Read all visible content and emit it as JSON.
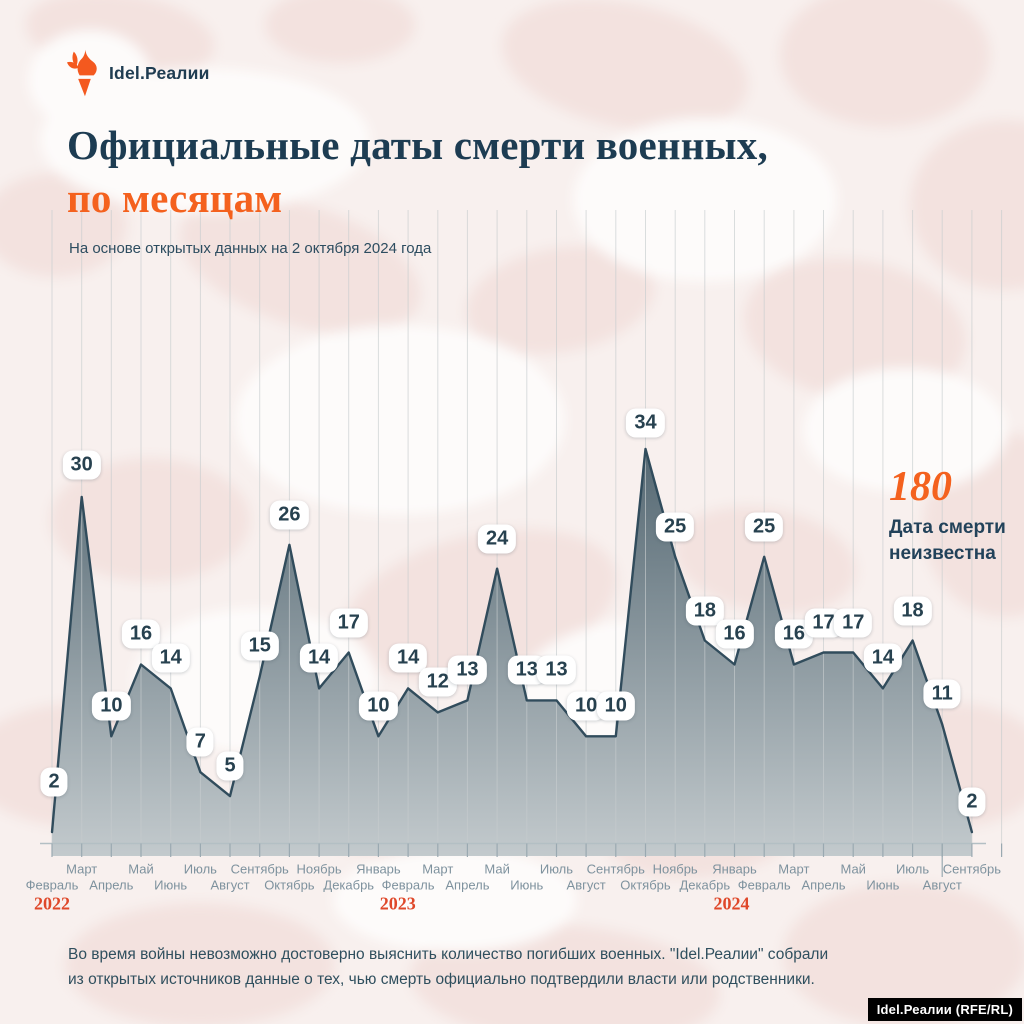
{
  "header": {
    "logo_text": "Idel.Реалии",
    "title_line1": "Официальные даты смерти военных,",
    "title_line2": "по месяцам",
    "subtitle": "На основе открытых данных на 2 октября 2024 года"
  },
  "annotation": {
    "value": "180",
    "label": "Дата смерти неизвестна"
  },
  "footer": {
    "note_line1": "Во время войны невозможно достоверно выяснить количество погибших военных. \"Idel.Реалии\" собрали",
    "note_line2": "из открытых источников данные о тех, чью смерть официально подтвердили власти или родственники.",
    "badge": "Idel.Реалии (RFE/RL)"
  },
  "chart_data": {
    "type": "area",
    "title": "Официальные даты смерти военных, по месяцам",
    "subtitle": "На основе открытых данных на 2 октября 2024 года",
    "categories": [
      "Февраль",
      "Март",
      "Апрель",
      "Май",
      "Июнь",
      "Июль",
      "Август",
      "Сентябрь",
      "Октябрь",
      "Ноябрь",
      "Декабрь",
      "Январь",
      "Февраль",
      "Март",
      "Апрель",
      "Май",
      "Июнь",
      "Июль",
      "Август",
      "Сентябрь",
      "Октябрь",
      "Ноябрь",
      "Декабрь",
      "Январь",
      "Февраль",
      "Март",
      "Апрель",
      "Май",
      "Июнь",
      "Июль",
      "Август",
      "Сентябрь"
    ],
    "values": [
      2,
      30,
      10,
      16,
      14,
      7,
      5,
      15,
      26,
      14,
      17,
      10,
      14,
      12,
      13,
      24,
      13,
      13,
      10,
      10,
      34,
      25,
      18,
      16,
      25,
      16,
      17,
      17,
      14,
      18,
      11,
      2
    ],
    "years": [
      {
        "label": "2022",
        "at": 0
      },
      {
        "label": "2023",
        "at": 11.65
      },
      {
        "label": "2024",
        "at": 22.9
      }
    ],
    "unknown_dates_count": 180,
    "ylim": [
      0,
      36
    ],
    "grid": "vertical-monthly",
    "legend": "none",
    "colors": {
      "line": "#314c5c",
      "area_top": "#50646f",
      "area_bottom": "#c3cacd",
      "grid": "#c7ccce",
      "axis": "#b3bfc4",
      "tick": "#9aa9b1",
      "accent_orange": "#f4611e",
      "year_red": "#df482a",
      "navy": "#1d3c52"
    }
  }
}
